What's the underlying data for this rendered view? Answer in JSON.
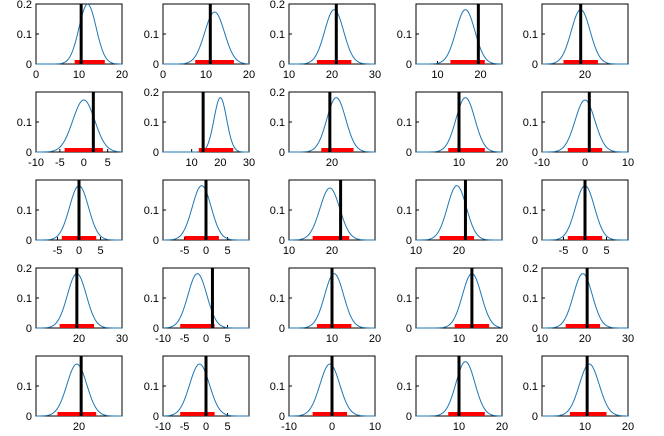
{
  "colors": {
    "curve": "#1f77b4",
    "interval": "#ff0000",
    "marker": "#000000",
    "axes": "#000000"
  },
  "chart_data": [
    {
      "type": "line",
      "xlim": [
        0,
        20
      ],
      "ylim": [
        0,
        0.2
      ],
      "xticks": [
        "0",
        "10",
        "20"
      ],
      "yticks": [
        "0",
        "0.1",
        "0.2"
      ],
      "mu": 12,
      "sigma": 2,
      "marker": 10.5,
      "interval": [
        9,
        16
      ]
    },
    {
      "type": "line",
      "xlim": [
        0,
        20
      ],
      "ylim": [
        0,
        0.2
      ],
      "xticks": [
        "0",
        "10",
        "20"
      ],
      "yticks": [
        "0",
        "0.1"
      ],
      "mu": 12,
      "sigma": 2.3,
      "marker": 11,
      "interval": [
        7.5,
        16.5
      ]
    },
    {
      "type": "line",
      "xlim": [
        10,
        30
      ],
      "ylim": [
        0,
        0.2
      ],
      "xticks": [
        "10",
        "20",
        "30"
      ],
      "yticks": [
        "0",
        "0.1",
        "0.2"
      ],
      "mu": 20.5,
      "sigma": 2.2,
      "marker": 21,
      "interval": [
        16.5,
        24.5
      ]
    },
    {
      "type": "line",
      "xlim": [
        5,
        25
      ],
      "ylim": [
        0,
        0.2
      ],
      "xticks": [
        "10",
        "20"
      ],
      "yticks": [
        "0",
        "0.1"
      ],
      "mu": 16.5,
      "sigma": 2.2,
      "marker": 19.5,
      "interval": [
        13,
        21
      ]
    },
    {
      "type": "line",
      "xlim": [
        10,
        30
      ],
      "ylim": [
        0,
        0.2
      ],
      "xticks": [
        "20"
      ],
      "yticks": [
        "0",
        "0.1"
      ],
      "mu": 19,
      "sigma": 2.2,
      "marker": 19,
      "interval": [
        15,
        23
      ]
    },
    {
      "type": "line",
      "xlim": [
        -10,
        8
      ],
      "ylim": [
        0,
        0.2
      ],
      "xticks": [
        "-10",
        "-5",
        "0",
        "5"
      ],
      "yticks": [
        "0",
        "0.1"
      ],
      "mu": 0,
      "sigma": 2.3,
      "marker": 2,
      "interval": [
        -4,
        4
      ]
    },
    {
      "type": "line",
      "xlim": [
        0,
        30
      ],
      "ylim": [
        0,
        0.2
      ],
      "xticks": [
        "10",
        "20",
        "30"
      ],
      "yticks": [
        "0",
        "0.1",
        "0.2"
      ],
      "mu": 20,
      "sigma": 2.2,
      "marker": 14,
      "interval": [
        12.5,
        24.5
      ]
    },
    {
      "type": "line",
      "xlim": [
        10,
        30
      ],
      "ylim": [
        0,
        0.2
      ],
      "xticks": [
        "20"
      ],
      "yticks": [
        "0",
        "0.1",
        "0.2"
      ],
      "mu": 21,
      "sigma": 2.2,
      "marker": 19.5,
      "interval": [
        17.5,
        25
      ]
    },
    {
      "type": "line",
      "xlim": [
        0,
        20
      ],
      "ylim": [
        0,
        0.2
      ],
      "xticks": [
        "10",
        "20"
      ],
      "yticks": [
        "0",
        "0.1"
      ],
      "mu": 11.5,
      "sigma": 2.2,
      "marker": 10,
      "interval": [
        7.5,
        16
      ]
    },
    {
      "type": "line",
      "xlim": [
        -10,
        10
      ],
      "ylim": [
        0,
        0.2
      ],
      "xticks": [
        "-10",
        "0",
        "10"
      ],
      "yticks": [
        "0",
        "0.1"
      ],
      "mu": 0,
      "sigma": 2.3,
      "marker": 1,
      "interval": [
        -4,
        4
      ]
    },
    {
      "type": "line",
      "xlim": [
        -10,
        10
      ],
      "ylim": [
        0,
        0.2
      ],
      "xticks": [
        "-5",
        "0",
        "5"
      ],
      "yticks": [
        "0",
        "0.1"
      ],
      "mu": 0,
      "sigma": 2.2,
      "marker": 0,
      "interval": [
        -4,
        4
      ]
    },
    {
      "type": "line",
      "xlim": [
        -10,
        10
      ],
      "ylim": [
        0,
        0.2
      ],
      "xticks": [
        "-5",
        "0",
        "5"
      ],
      "yticks": [
        "0",
        "0.1"
      ],
      "mu": -1,
      "sigma": 2.2,
      "marker": 0,
      "interval": [
        -5,
        3
      ]
    },
    {
      "type": "line",
      "xlim": [
        10,
        30
      ],
      "ylim": [
        0,
        0.2
      ],
      "xticks": [
        "10",
        "20"
      ],
      "yticks": [
        "0",
        "0.1"
      ],
      "mu": 19.5,
      "sigma": 2.3,
      "marker": 22,
      "interval": [
        15.5,
        24
      ]
    },
    {
      "type": "line",
      "xlim": [
        10,
        30
      ],
      "ylim": [
        0,
        0.2
      ],
      "xticks": [
        "10",
        "20"
      ],
      "yticks": [
        "0",
        "0.1"
      ],
      "mu": 19.5,
      "sigma": 2.2,
      "marker": 21.5,
      "interval": [
        15.5,
        23.5
      ]
    },
    {
      "type": "line",
      "xlim": [
        -10,
        10
      ],
      "ylim": [
        0,
        0.2
      ],
      "xticks": [
        "-5",
        "0",
        "5"
      ],
      "yticks": [
        "0",
        "0.1"
      ],
      "mu": 0,
      "sigma": 2.2,
      "marker": 0,
      "interval": [
        -4,
        4
      ]
    },
    {
      "type": "line",
      "xlim": [
        10,
        30
      ],
      "ylim": [
        0,
        0.2
      ],
      "xticks": [
        "20",
        "30"
      ],
      "yticks": [
        "0",
        "0.1",
        "0.2"
      ],
      "mu": 19.5,
      "sigma": 2.2,
      "marker": 19.5,
      "interval": [
        15.5,
        23.5
      ]
    },
    {
      "type": "line",
      "xlim": [
        -10,
        10
      ],
      "ylim": [
        0,
        0.2
      ],
      "xticks": [
        "-10",
        "-5",
        "0",
        "5"
      ],
      "yticks": [
        "0",
        "0.1"
      ],
      "mu": -2,
      "sigma": 2.2,
      "marker": 1.5,
      "interval": [
        -6,
        2
      ]
    },
    {
      "type": "line",
      "xlim": [
        0,
        20
      ],
      "ylim": [
        0,
        0.2
      ],
      "xticks": [
        "10",
        "20"
      ],
      "yticks": [
        "0",
        "0.1"
      ],
      "mu": 10.5,
      "sigma": 2.2,
      "marker": 10,
      "interval": [
        6.5,
        14.5
      ]
    },
    {
      "type": "line",
      "xlim": [
        0,
        20
      ],
      "ylim": [
        0,
        0.2
      ],
      "xticks": [
        "10",
        "20"
      ],
      "yticks": [
        "0",
        "0.1"
      ],
      "mu": 13,
      "sigma": 2.2,
      "marker": 13,
      "interval": [
        9,
        17
      ]
    },
    {
      "type": "line",
      "xlim": [
        10,
        30
      ],
      "ylim": [
        0,
        0.2
      ],
      "xticks": [
        "10",
        "20",
        "30"
      ],
      "yticks": [
        "0",
        "0.1",
        "0.2"
      ],
      "mu": 19.5,
      "sigma": 2.2,
      "marker": 20.5,
      "interval": [
        15.5,
        23.5
      ]
    },
    {
      "type": "line",
      "xlim": [
        10,
        30
      ],
      "ylim": [
        0,
        0.2
      ],
      "xticks": [
        "20"
      ],
      "yticks": [
        "0",
        "0.1"
      ],
      "mu": 19.5,
      "sigma": 2.3,
      "marker": 20.5,
      "interval": [
        15,
        24
      ]
    },
    {
      "type": "line",
      "xlim": [
        -10,
        10
      ],
      "ylim": [
        0,
        0.2
      ],
      "xticks": [
        "-10",
        "-5",
        "0",
        "5"
      ],
      "yticks": [
        "0",
        "0.1"
      ],
      "mu": -1.5,
      "sigma": 2.3,
      "marker": 0,
      "interval": [
        -6,
        2
      ]
    },
    {
      "type": "line",
      "xlim": [
        -10,
        10
      ],
      "ylim": [
        0,
        0.2
      ],
      "xticks": [
        "-10",
        "0",
        "10"
      ],
      "yticks": [
        "0",
        "0.1"
      ],
      "mu": -0.5,
      "sigma": 2.3,
      "marker": 0,
      "interval": [
        -4.5,
        3.5
      ]
    },
    {
      "type": "line",
      "xlim": [
        0,
        20
      ],
      "ylim": [
        0,
        0.2
      ],
      "xticks": [
        "10",
        "20"
      ],
      "yticks": [
        "0",
        "0.1"
      ],
      "mu": 11.5,
      "sigma": 2.2,
      "marker": 10,
      "interval": [
        7.5,
        16
      ]
    },
    {
      "type": "line",
      "xlim": [
        0,
        20
      ],
      "ylim": [
        0,
        0.2
      ],
      "xticks": [
        "10",
        "20"
      ],
      "yticks": [
        "0",
        "0.1"
      ],
      "mu": 11,
      "sigma": 2.3,
      "marker": 10.5,
      "interval": [
        6.5,
        15
      ]
    }
  ]
}
